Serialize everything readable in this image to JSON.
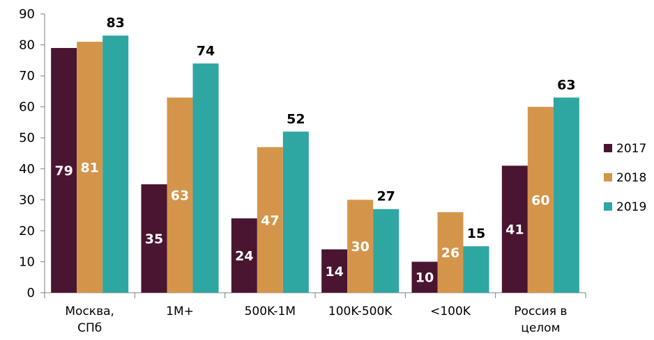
{
  "chart_data": {
    "type": "bar",
    "categories": [
      [
        "Москва,",
        "СПб"
      ],
      [
        "1М+"
      ],
      [
        "500K-1M"
      ],
      [
        "100K-500K"
      ],
      [
        "<100K"
      ],
      [
        "Россия в",
        "целом"
      ]
    ],
    "series": [
      {
        "name": "2017",
        "color": "#4a1530",
        "values": [
          79,
          35,
          24,
          14,
          10,
          41
        ],
        "labels": [
          "79",
          "35",
          "24",
          "14",
          "10",
          "41"
        ],
        "inside_label_color": "#ffffff"
      },
      {
        "name": "2018",
        "color": "#d4954b",
        "values": [
          81,
          63,
          47,
          30,
          26,
          60
        ],
        "labels": [
          "81",
          "63",
          "47",
          "30",
          "26",
          "60"
        ],
        "inside_label_color": "#ffffff"
      },
      {
        "name": "2019",
        "color": "#2ea6a2",
        "values": [
          83,
          74,
          52,
          27,
          15,
          63
        ],
        "labels": [
          "83",
          "74",
          "52",
          "27",
          "15",
          "63"
        ],
        "inside_label_color": "#000000"
      }
    ],
    "ylim": [
      0,
      90
    ],
    "yticks": [
      0,
      10,
      20,
      30,
      40,
      50,
      60,
      70,
      80,
      90
    ],
    "legend_position": "right",
    "grid": false
  }
}
